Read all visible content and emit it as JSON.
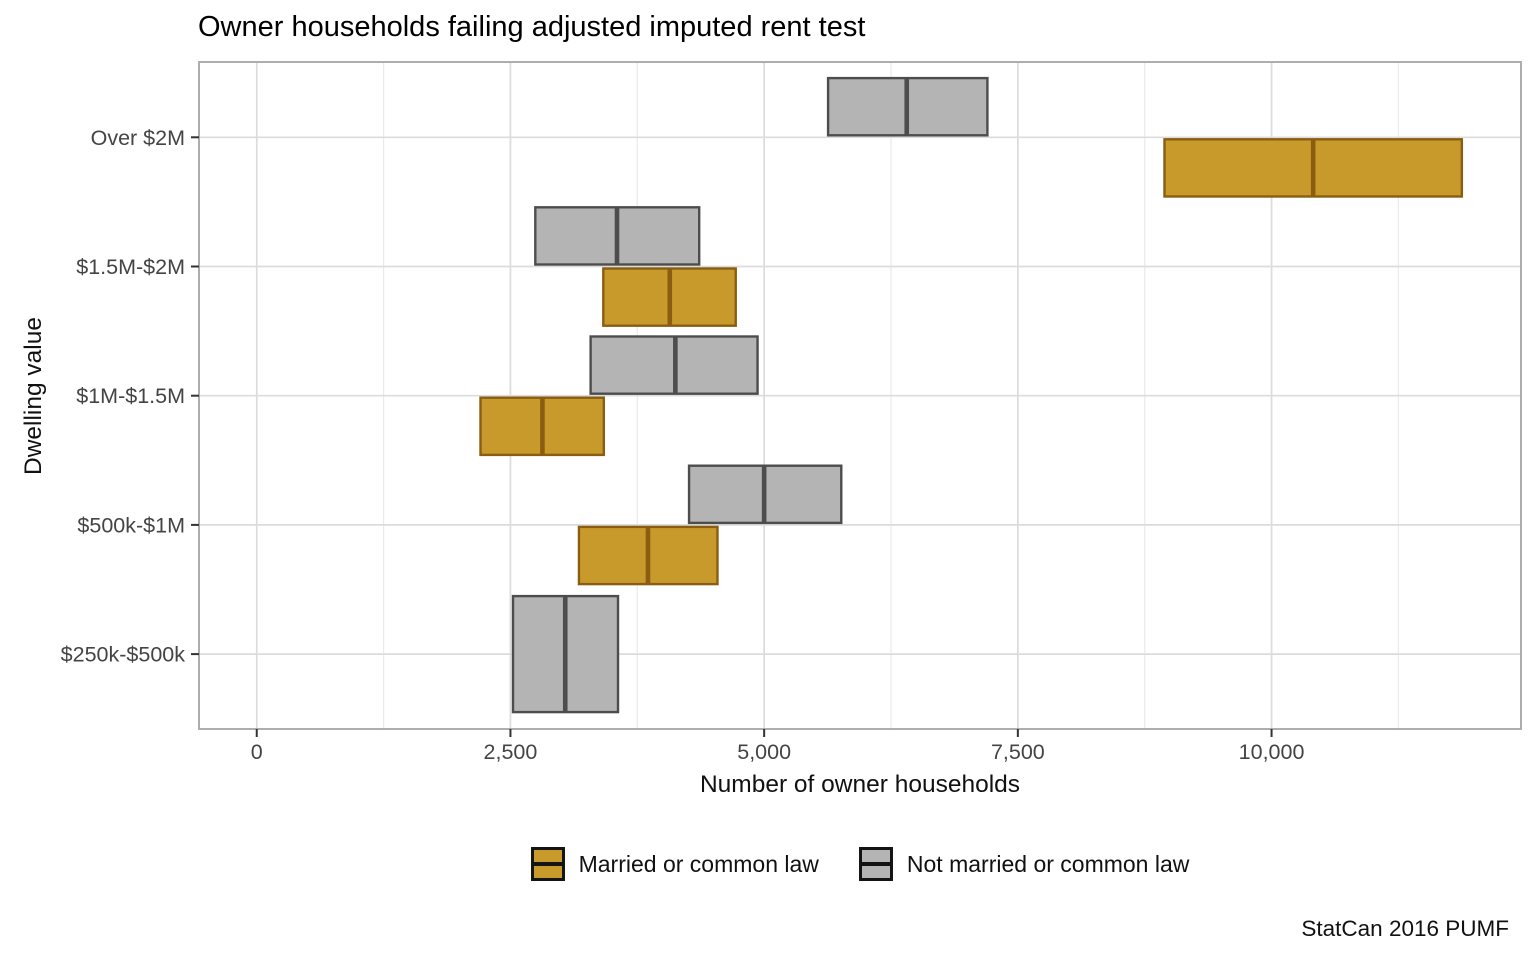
{
  "chart_data": {
    "type": "crossbar",
    "title": "Owner households failing adjusted imputed rent test",
    "xlabel": "Number of owner households",
    "ylabel": "Dwelling value",
    "caption": "StatCan 2016 PUMF",
    "categories": [
      "Over $2M",
      "$1.5M-$2M",
      "$1M-$1.5M",
      "$500k-$1M",
      "$250k-$500k"
    ],
    "xlim": [
      -569,
      12458
    ],
    "x_major_ticks": {
      "values": [
        0,
        2500,
        5000,
        7500,
        10000
      ],
      "labels": [
        "0",
        "2,500",
        "5,000",
        "7,500",
        "10,000"
      ]
    },
    "x_minor_ticks": [
      1250,
      3750,
      6250,
      8750,
      11250
    ],
    "grid": {
      "vertical": "major+minor",
      "horizontal": "category-centers"
    },
    "legend_position": "bottom",
    "value_format": "[low, middle, high] per category; null = no box",
    "series": [
      {
        "name": "Married or common law",
        "fill": "#C89A2C",
        "stroke": "#8A5D10",
        "dodge": "bottom",
        "values": [
          [
            8945,
            10410,
            11875
          ],
          [
            3415,
            4070,
            4720
          ],
          [
            2205,
            2815,
            3420
          ],
          [
            3175,
            3855,
            4540
          ],
          null
        ]
      },
      {
        "name": "Not married or common law",
        "fill": "#B4B4B4",
        "stroke": "#4D4D4D",
        "dodge": "top",
        "values": [
          [
            5630,
            6405,
            7200
          ],
          [
            2745,
            3550,
            4360
          ],
          [
            3290,
            4125,
            4935
          ],
          [
            4260,
            5000,
            5760
          ],
          [
            2525,
            3040,
            3560
          ]
        ]
      }
    ],
    "style_colors": {
      "grid_major": "#DCDCDC",
      "grid_minor": "#EAEAEA",
      "panel_border": "#A6A6A6",
      "tick_mark": "#333333",
      "tick_text": "#444444"
    }
  }
}
